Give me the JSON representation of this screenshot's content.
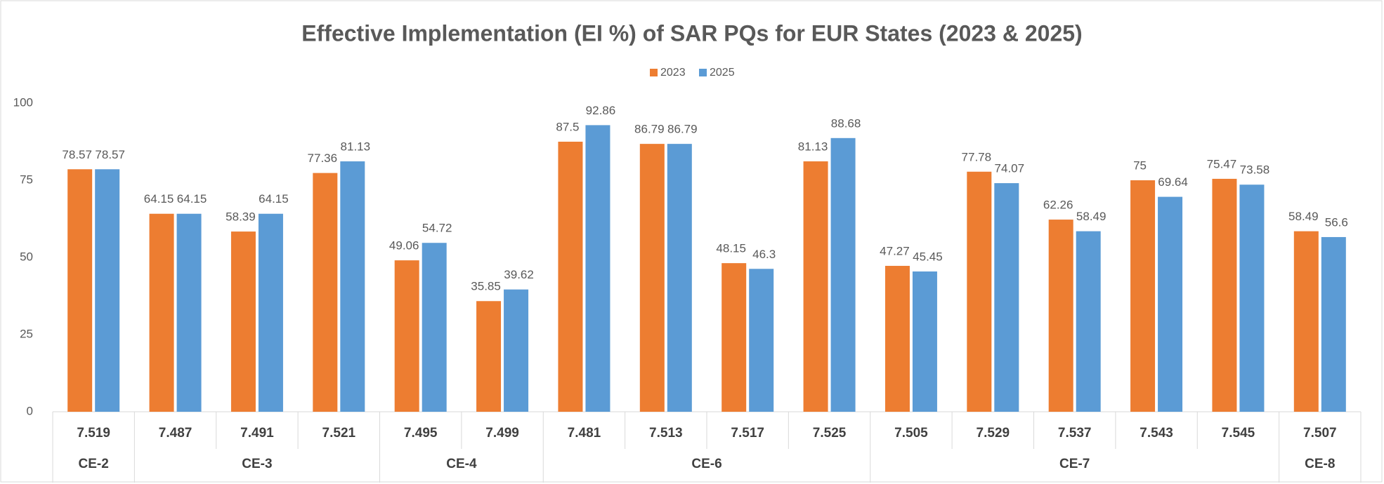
{
  "chart_data": {
    "type": "bar",
    "title": "Effective Implementation (EI %) of SAR PQs for EUR States (2023 & 2025)",
    "groups": [
      {
        "name": "CE-2",
        "categories": [
          "7.519"
        ]
      },
      {
        "name": "CE-3",
        "categories": [
          "7.487",
          "7.491",
          "7.521"
        ]
      },
      {
        "name": "CE-4",
        "categories": [
          "7.495",
          "7.499"
        ]
      },
      {
        "name": "CE-6",
        "categories": [
          "7.481",
          "7.513",
          "7.517",
          "7.525"
        ]
      },
      {
        "name": "CE-7",
        "categories": [
          "7.505",
          "7.529",
          "7.537",
          "7.543",
          "7.545"
        ]
      },
      {
        "name": "CE-8",
        "categories": [
          "7.507"
        ]
      }
    ],
    "series": [
      {
        "name": "2023",
        "color": "#ED7D31",
        "values": [
          78.57,
          64.15,
          58.39,
          77.36,
          49.06,
          35.85,
          87.5,
          86.79,
          48.15,
          81.13,
          47.27,
          77.78,
          62.26,
          75,
          75.47,
          58.49
        ]
      },
      {
        "name": "2025",
        "color": "#5B9BD5",
        "values": [
          78.57,
          64.15,
          64.15,
          81.13,
          54.72,
          39.62,
          92.86,
          86.79,
          46.3,
          88.68,
          45.45,
          74.07,
          58.49,
          69.64,
          73.58,
          56.6
        ]
      }
    ],
    "ylim": [
      0,
      100
    ],
    "yticks": [
      0,
      25,
      50,
      75,
      100
    ],
    "grid": false,
    "legend": "top"
  }
}
